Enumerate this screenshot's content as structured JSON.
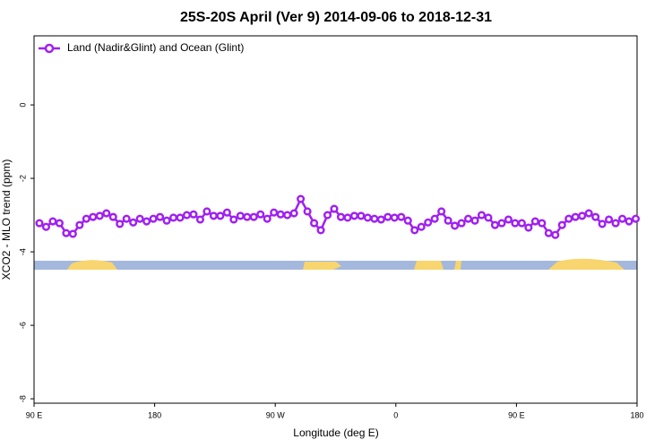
{
  "chart_data": {
    "type": "line",
    "title": "25S-20S April (Ver 9)   2014-09-06 to 2018-12-31",
    "xlabel": "Longitude (deg E)",
    "ylabel": "XCO2 - MLO trend (ppm)",
    "xlim": [
      90,
      540
    ],
    "ylim": [
      -8.12,
      1.88
    ],
    "xticks": [
      {
        "value": 90,
        "label": "90 E"
      },
      180,
      {
        "value": 270,
        "label": "90 W"
      },
      {
        "value": 360,
        "label": "0"
      },
      {
        "value": 450,
        "label": "90 E"
      },
      {
        "value": 540,
        "label": "180"
      }
    ],
    "yticks": [
      -8,
      -6,
      -4,
      -2,
      0
    ],
    "legend": "top-left",
    "series": [
      {
        "name": "Land (Nadir&Glint) and Ocean (Glint)",
        "color": "#a020f0",
        "x": [
          94,
          99,
          104,
          109,
          114,
          119,
          124,
          129,
          134,
          139,
          144,
          149,
          154,
          159,
          164,
          169,
          174,
          179,
          184,
          189,
          194,
          199,
          204,
          209,
          214,
          219,
          224,
          229,
          234,
          239,
          244,
          249,
          254,
          259,
          264,
          269,
          274,
          279,
          284,
          289,
          294,
          299,
          304,
          309,
          314,
          319,
          324,
          329,
          334,
          339,
          344,
          349,
          354,
          359,
          364,
          369,
          374,
          379,
          384,
          389,
          394,
          399,
          404,
          409,
          414,
          419,
          424,
          429,
          434,
          439,
          444,
          449,
          454,
          459,
          464,
          469,
          474,
          479,
          484,
          489,
          494,
          499,
          504,
          509,
          514,
          519,
          524,
          529,
          534,
          539
        ],
        "values": [
          -3.22,
          -3.32,
          -3.17,
          -3.22,
          -3.49,
          -3.51,
          -3.27,
          -3.1,
          -3.05,
          -3.02,
          -2.95,
          -3.05,
          -3.24,
          -3.1,
          -3.2,
          -3.1,
          -3.17,
          -3.1,
          -3.05,
          -3.15,
          -3.07,
          -3.07,
          -3.0,
          -2.98,
          -3.12,
          -2.9,
          -3.02,
          -3.02,
          -2.93,
          -3.12,
          -3.02,
          -3.05,
          -3.05,
          -2.98,
          -3.1,
          -2.93,
          -2.98,
          -3.0,
          -2.95,
          -2.56,
          -2.9,
          -3.22,
          -3.41,
          -3.0,
          -2.83,
          -3.05,
          -3.07,
          -3.02,
          -3.02,
          -3.07,
          -3.1,
          -3.12,
          -3.05,
          -3.07,
          -3.05,
          -3.15,
          -3.41,
          -3.32,
          -3.2,
          -3.1,
          -2.9,
          -3.15,
          -3.29,
          -3.22,
          -3.1,
          -3.15,
          -3.0,
          -3.07,
          -3.27,
          -3.22,
          -3.12,
          -3.22,
          -3.22,
          -3.34,
          -3.17,
          -3.22,
          -3.49,
          -3.54,
          -3.27,
          -3.1,
          -3.05,
          -3.02,
          -2.95,
          -3.05,
          -3.24,
          -3.12,
          -3.22,
          -3.1,
          -3.17,
          -3.1
        ]
      }
    ]
  }
}
